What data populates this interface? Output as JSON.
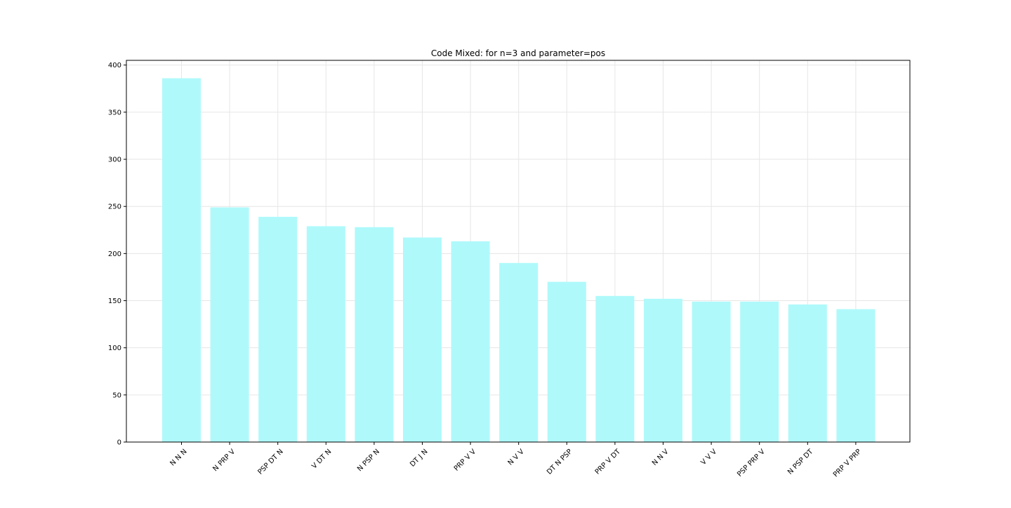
{
  "chart_data": {
    "type": "bar",
    "title": "Code Mixed: for n=3 and parameter=pos",
    "xlabel": "",
    "ylabel": "",
    "categories": [
      "N N N",
      "N PRP V",
      "PSP DT N",
      "V DT N",
      "N PSP N",
      "DT J N",
      "PRP V V",
      "N V V",
      "DT N PSP",
      "PRP V DT",
      "N N V",
      "V V V",
      "PSP PRP V",
      "N PSP DT",
      "PRP V PRP"
    ],
    "values": [
      386,
      249,
      239,
      229,
      228,
      217,
      213,
      190,
      170,
      155,
      152,
      149,
      149,
      146,
      141
    ],
    "ylim": [
      0,
      405
    ],
    "yticks": [
      0,
      50,
      100,
      150,
      200,
      250,
      300,
      350,
      400
    ],
    "grid": true,
    "bar_color": "#aff9fb",
    "grid_color": "#e6e6e6"
  }
}
